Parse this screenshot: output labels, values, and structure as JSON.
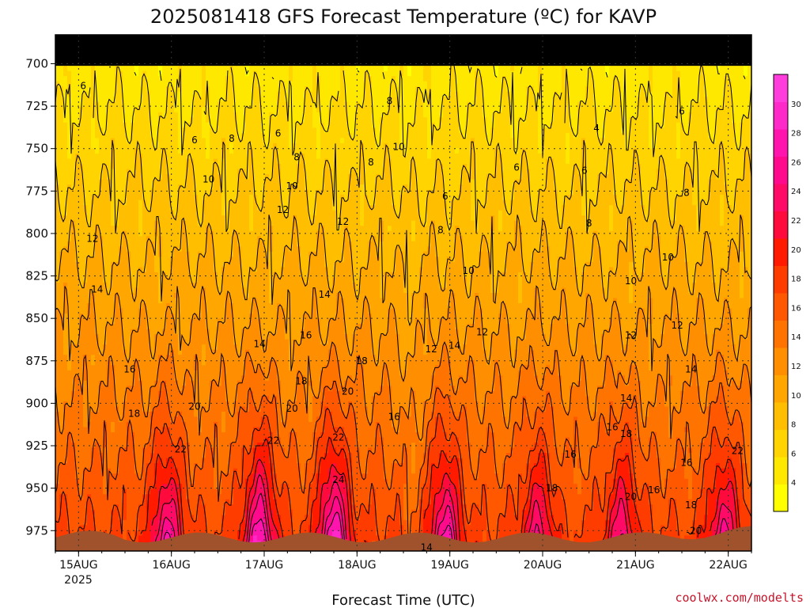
{
  "chart_data": {
    "type": "heatmap",
    "title": "2025081418 GFS Forecast Temperature (ºC) for KAVP",
    "xlabel": "Forecast Time (UTC)",
    "ylabel": "",
    "credit": "coolwx.com/modelts",
    "y_axis": {
      "unit": "hPa",
      "inverted": true,
      "range": [
        987,
        683
      ],
      "ticks": [
        700,
        725,
        750,
        775,
        800,
        825,
        850,
        875,
        900,
        925,
        950,
        975
      ],
      "tick_labels": [
        "700",
        "725",
        "750",
        "775",
        "800",
        "825",
        "850",
        "875",
        "900",
        "925",
        "950",
        "975"
      ]
    },
    "x_axis": {
      "tick_labels": [
        "15AUG",
        "16AUG",
        "17AUG",
        "18AUG",
        "19AUG",
        "20AUG",
        "21AUG",
        "22AUG"
      ],
      "year_label": "2025",
      "range_days": [
        14.75,
        22.25
      ]
    },
    "colorbar": {
      "ticks": [
        4,
        6,
        8,
        10,
        12,
        14,
        16,
        18,
        20,
        22,
        24,
        26,
        28,
        30
      ],
      "tick_labels": [
        "4",
        "6",
        "8",
        "10",
        "12",
        "14",
        "16",
        "18",
        "20",
        "22",
        "24",
        "26",
        "28",
        "30"
      ],
      "colors": [
        "#ffff00",
        "#ffe800",
        "#ffd400",
        "#ffbf00",
        "#ffa600",
        "#ff8f00",
        "#ff7400",
        "#ff5800",
        "#ff3c00",
        "#ff1a00",
        "#ff0a3c",
        "#ff0a66",
        "#ff0a8c",
        "#ff14ae",
        "#ff28c8",
        "#ff3cdc"
      ],
      "min": 2,
      "max": 32
    },
    "grid": true,
    "ground_color": "#a0522d",
    "contour_labels": [
      {
        "v": 6,
        "t": 15.05,
        "p": 713
      },
      {
        "v": 6,
        "t": 16.25,
        "p": 745
      },
      {
        "v": 8,
        "t": 16.65,
        "p": 744
      },
      {
        "v": 6,
        "t": 17.15,
        "p": 741
      },
      {
        "v": 8,
        "t": 17.35,
        "p": 755
      },
      {
        "v": 10,
        "t": 17.3,
        "p": 772
      },
      {
        "v": 12,
        "t": 17.2,
        "p": 786
      },
      {
        "v": 12,
        "t": 17.85,
        "p": 793
      },
      {
        "v": 8,
        "t": 18.35,
        "p": 722
      },
      {
        "v": 10,
        "t": 18.45,
        "p": 749
      },
      {
        "v": 8,
        "t": 18.15,
        "p": 758
      },
      {
        "v": 6,
        "t": 18.95,
        "p": 778
      },
      {
        "v": 8,
        "t": 18.9,
        "p": 798
      },
      {
        "v": 10,
        "t": 19.2,
        "p": 822
      },
      {
        "v": 6,
        "t": 19.72,
        "p": 761
      },
      {
        "v": 4,
        "t": 20.58,
        "p": 738
      },
      {
        "v": 6,
        "t": 20.45,
        "p": 763
      },
      {
        "v": 8,
        "t": 20.5,
        "p": 794
      },
      {
        "v": 6,
        "t": 21.5,
        "p": 728
      },
      {
        "v": 8,
        "t": 21.55,
        "p": 776
      },
      {
        "v": 10,
        "t": 21.35,
        "p": 814
      },
      {
        "v": 10,
        "t": 20.95,
        "p": 828
      },
      {
        "v": 12,
        "t": 21.45,
        "p": 854
      },
      {
        "v": 12,
        "t": 20.95,
        "p": 860
      },
      {
        "v": 14,
        "t": 21.6,
        "p": 880
      },
      {
        "v": 16,
        "t": 21.55,
        "p": 935
      },
      {
        "v": 18,
        "t": 21.6,
        "p": 960
      },
      {
        "v": 20,
        "t": 21.65,
        "p": 975
      },
      {
        "v": 14,
        "t": 20.9,
        "p": 897
      },
      {
        "v": 16,
        "t": 20.75,
        "p": 914
      },
      {
        "v": 16,
        "t": 21.2,
        "p": 951
      },
      {
        "v": 18,
        "t": 20.9,
        "p": 918
      },
      {
        "v": 20,
        "t": 20.95,
        "p": 955
      },
      {
        "v": 16,
        "t": 20.3,
        "p": 930
      },
      {
        "v": 18,
        "t": 20.1,
        "p": 950
      },
      {
        "v": 10,
        "t": 16.4,
        "p": 768
      },
      {
        "v": 12,
        "t": 15.15,
        "p": 803
      },
      {
        "v": 14,
        "t": 15.2,
        "p": 833
      },
      {
        "v": 14,
        "t": 16.95,
        "p": 865
      },
      {
        "v": 14,
        "t": 17.65,
        "p": 836
      },
      {
        "v": 16,
        "t": 15.55,
        "p": 880
      },
      {
        "v": 16,
        "t": 17.45,
        "p": 860
      },
      {
        "v": 18,
        "t": 15.6,
        "p": 906
      },
      {
        "v": 18,
        "t": 17.4,
        "p": 887
      },
      {
        "v": 18,
        "t": 18.05,
        "p": 875
      },
      {
        "v": 20,
        "t": 16.25,
        "p": 902
      },
      {
        "v": 20,
        "t": 17.3,
        "p": 903
      },
      {
        "v": 20,
        "t": 17.9,
        "p": 893
      },
      {
        "v": 22,
        "t": 16.1,
        "p": 927
      },
      {
        "v": 22,
        "t": 17.1,
        "p": 922
      },
      {
        "v": 22,
        "t": 17.8,
        "p": 920
      },
      {
        "v": 24,
        "t": 17.8,
        "p": 945
      },
      {
        "v": 16,
        "t": 18.4,
        "p": 908
      },
      {
        "v": 12,
        "t": 18.8,
        "p": 868
      },
      {
        "v": 14,
        "t": 19.05,
        "p": 866
      },
      {
        "v": 12,
        "t": 19.35,
        "p": 858
      },
      {
        "v": 14,
        "t": 18.75,
        "p": 985
      },
      {
        "v": 22,
        "t": 22.1,
        "p": 928
      }
    ]
  }
}
